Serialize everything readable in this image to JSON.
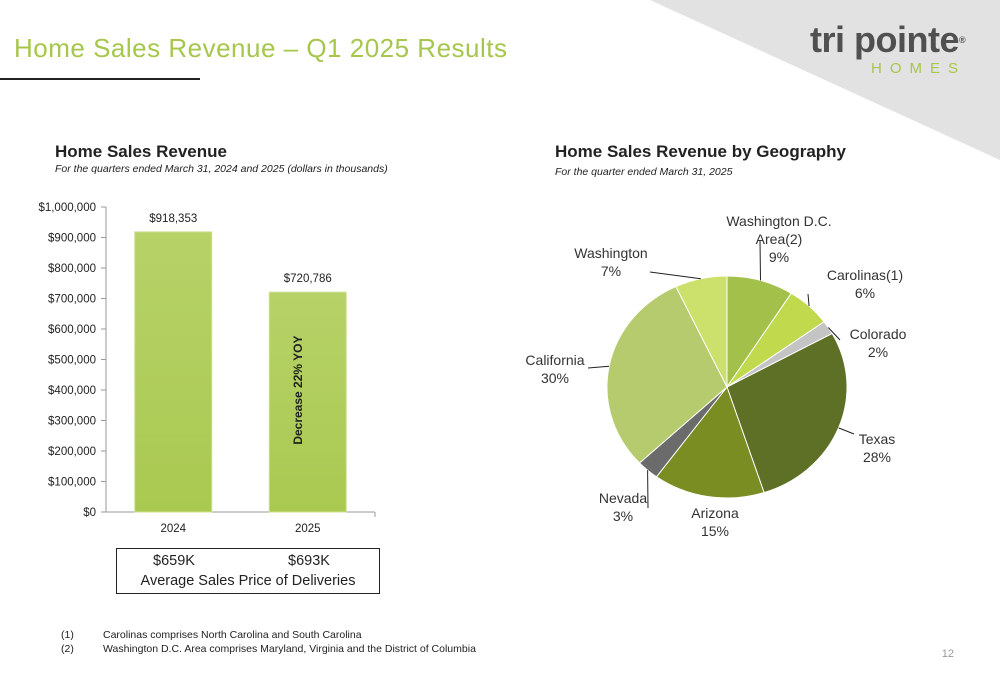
{
  "slide": {
    "title": "Home Sales Revenue – Q1 2025 Results",
    "page_number": "12",
    "accent_color": "#a6c64c"
  },
  "logo": {
    "main": "tri pointe",
    "registered": "®",
    "sub": "HOMES"
  },
  "bar_panel": {
    "title": "Home Sales Revenue",
    "subtitle": "For the quarters ended March 31, 2024 and 2025 (dollars in thousands)",
    "annotation": "Decrease 22% YOY"
  },
  "pie_panel": {
    "title": "Home Sales Revenue by Geography",
    "subtitle": "For the quarter ended March 31, 2025"
  },
  "average_sales_price": {
    "values": [
      "$659K",
      "$693K"
    ],
    "caption": "Average Sales Price of Deliveries"
  },
  "footnotes": [
    {
      "num": "(1)",
      "text": "Carolinas comprises North Carolina and South Carolina"
    },
    {
      "num": "(2)",
      "text": "Washington D.C. Area comprises Maryland, Virginia and the District of Columbia"
    }
  ],
  "chart_data": [
    {
      "type": "bar",
      "categories": [
        "2024",
        "2025"
      ],
      "values": [
        918353,
        720786
      ],
      "data_labels": [
        "$918,353",
        "$720,786"
      ],
      "ylim": [
        0,
        1000000
      ],
      "yticks": [
        0,
        100000,
        200000,
        300000,
        400000,
        500000,
        600000,
        700000,
        800000,
        900000,
        1000000
      ],
      "ytick_labels": [
        "$0",
        "$100,000",
        "$200,000",
        "$300,000",
        "$400,000",
        "$500,000",
        "$600,000",
        "$700,000",
        "$800,000",
        "$900,000",
        "$1,000,000"
      ],
      "grid": false,
      "bar_color": "#a9c951"
    },
    {
      "type": "pie",
      "slices": [
        {
          "label": [
            "Washington D.C.",
            "Area(2)"
          ],
          "pct_label": "9%",
          "value": 9,
          "color": "#a3c04a"
        },
        {
          "label": [
            "Carolinas(1)"
          ],
          "pct_label": "6%",
          "value": 6,
          "color": "#c1da4d"
        },
        {
          "label": [
            "Colorado"
          ],
          "pct_label": "2%",
          "value": 2,
          "color": "#c4c4c4"
        },
        {
          "label": [
            "Texas"
          ],
          "pct_label": "28%",
          "value": 28,
          "color": "#5d7026"
        },
        {
          "label": [
            "Arizona"
          ],
          "pct_label": "15%",
          "value": 15,
          "color": "#7a8d22"
        },
        {
          "label": [
            "Nevada"
          ],
          "pct_label": "3%",
          "value": 3,
          "color": "#6b6b6b"
        },
        {
          "label": [
            "California"
          ],
          "pct_label": "30%",
          "value": 30,
          "color": "#b5cb6e"
        },
        {
          "label": [
            "Washington"
          ],
          "pct_label": "7%",
          "value": 7,
          "color": "#cce06c"
        }
      ]
    }
  ]
}
